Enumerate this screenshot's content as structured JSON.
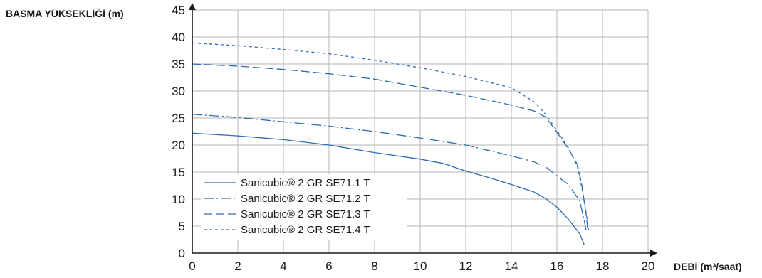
{
  "chart_data": {
    "type": "line",
    "ylabel": "BASMA YÜKSEKLİĞİ (m)",
    "xlabel": "DEBİ (m³/saat)",
    "xlim": [
      0,
      20
    ],
    "ylim": [
      0,
      45
    ],
    "x_ticks": [
      0,
      2,
      4,
      6,
      8,
      10,
      12,
      14,
      16,
      18,
      20
    ],
    "y_ticks": [
      0,
      5,
      10,
      15,
      20,
      25,
      30,
      35,
      40,
      45
    ],
    "grid": true,
    "legend_position": "bottom-left",
    "line_color": "#2d6bb5",
    "series": [
      {
        "name": "Sanicubic® 2 GR SE71.1 T",
        "style": "solid",
        "points": [
          [
            0,
            22.2
          ],
          [
            2,
            21.7
          ],
          [
            4,
            21.0
          ],
          [
            6,
            20.0
          ],
          [
            8,
            18.6
          ],
          [
            10,
            17.4
          ],
          [
            11,
            16.6
          ],
          [
            12,
            15.2
          ],
          [
            13,
            14.0
          ],
          [
            14,
            12.7
          ],
          [
            15,
            11.3
          ],
          [
            15.5,
            10.1
          ],
          [
            16,
            8.5
          ],
          [
            16.5,
            6.3
          ],
          [
            17,
            3.6
          ],
          [
            17.2,
            1.5
          ]
        ]
      },
      {
        "name": "Sanicubic® 2 GR SE71.2 T",
        "style": "dashdot",
        "points": [
          [
            0,
            25.7
          ],
          [
            2,
            25.1
          ],
          [
            4,
            24.3
          ],
          [
            6,
            23.5
          ],
          [
            8,
            22.5
          ],
          [
            10,
            21.3
          ],
          [
            12,
            20.0
          ],
          [
            14,
            18.0
          ],
          [
            15,
            16.9
          ],
          [
            15.6,
            15.7
          ],
          [
            16,
            14.3
          ],
          [
            16.5,
            12.7
          ],
          [
            17,
            9.7
          ],
          [
            17.2,
            6.0
          ],
          [
            17.3,
            3.8
          ]
        ]
      },
      {
        "name": "Sanicubic® 2 GR SE71.3 T",
        "style": "longdash",
        "points": [
          [
            0,
            35.0
          ],
          [
            2,
            34.6
          ],
          [
            4,
            34.0
          ],
          [
            6,
            33.2
          ],
          [
            8,
            32.2
          ],
          [
            10,
            30.7
          ],
          [
            12,
            29.2
          ],
          [
            14,
            27.4
          ],
          [
            15,
            26.3
          ],
          [
            15.5,
            25.2
          ],
          [
            16,
            22.4
          ],
          [
            16.5,
            19.3
          ],
          [
            16.9,
            16.4
          ],
          [
            17.1,
            12.5
          ],
          [
            17.3,
            6.5
          ],
          [
            17.35,
            4.5
          ]
        ]
      },
      {
        "name": "Sanicubic® 2 GR SE71.4 T",
        "style": "shortdash",
        "points": [
          [
            0,
            38.9
          ],
          [
            2,
            38.4
          ],
          [
            4,
            37.7
          ],
          [
            6,
            36.9
          ],
          [
            8,
            35.7
          ],
          [
            10,
            34.3
          ],
          [
            12,
            32.7
          ],
          [
            14,
            30.6
          ],
          [
            15,
            28.0
          ],
          [
            15.5,
            25.7
          ],
          [
            16,
            22.7
          ],
          [
            16.5,
            19.5
          ],
          [
            16.9,
            16.0
          ],
          [
            17.1,
            12.0
          ],
          [
            17.3,
            7.0
          ],
          [
            17.4,
            4.0
          ]
        ]
      }
    ]
  }
}
